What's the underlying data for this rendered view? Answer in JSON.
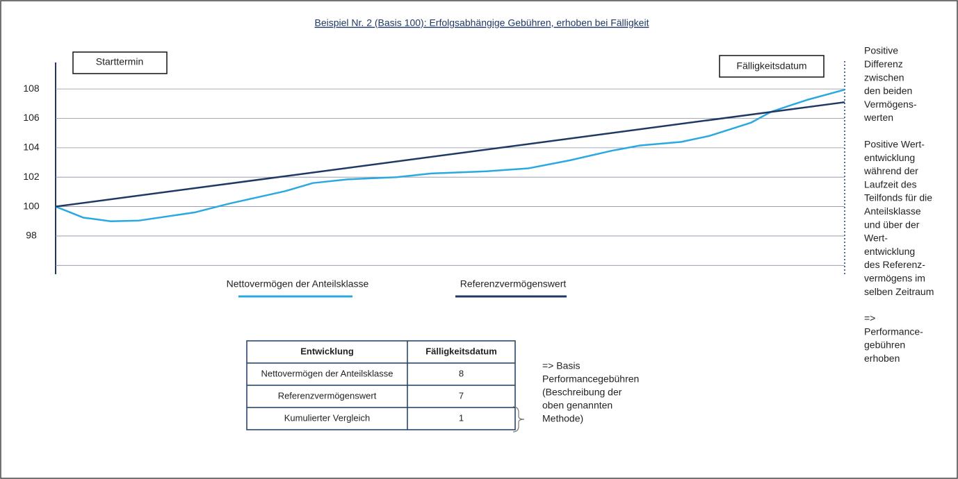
{
  "chart_data": {
    "type": "line",
    "title": "Beispiel Nr. 2 (Basis 100): Erfolgsabhängige Gebühren, erhoben bei Fälligkeit",
    "start_label": "Starttermin",
    "end_label": "Fälligkeitsdatum",
    "xlim": [
      0,
      100
    ],
    "ylim": [
      95.4,
      109.8
    ],
    "yticks": [
      98,
      100,
      102,
      104,
      106,
      108
    ],
    "gridlines": [
      96,
      98,
      100,
      102,
      104,
      106,
      108
    ],
    "grid": true,
    "series": [
      {
        "name": "Nettovermögen der Anteilsklasse",
        "color": "#2aa9e0",
        "x": [
          0,
          3.5,
          7.0,
          10.6,
          17.6,
          22.0,
          29.1,
          32.6,
          37.0,
          43.2,
          47.6,
          54.6,
          59.9,
          65.2,
          70.5,
          74.0,
          79.3,
          82.8,
          88.1,
          90.7,
          95.2,
          100
        ],
        "values": [
          100,
          99.25,
          99.0,
          99.05,
          99.6,
          100.2,
          101.05,
          101.6,
          101.85,
          102.0,
          102.25,
          102.4,
          102.6,
          103.15,
          103.8,
          104.15,
          104.4,
          104.8,
          105.7,
          106.45,
          107.25,
          107.95
        ]
      },
      {
        "name": "Referenzvermögenswert",
        "color": "#1f3864",
        "x": [
          0,
          100
        ],
        "values": [
          100,
          107.1
        ]
      }
    ],
    "side_notes": [
      [
        "Positive",
        "Differenz",
        "zwischen",
        "den beiden",
        "Vermögens-",
        "werten"
      ],
      [
        "Positive Wert-",
        "entwicklung",
        "während der",
        "Laufzeit des",
        "Teilfonds für die",
        "Anteilsklasse",
        "und über der",
        "Wert-",
        "entwicklung",
        "des Referenz-",
        "vermögens im",
        "selben Zeitraum"
      ],
      [
        "=>",
        "Performance-",
        "gebühren",
        "erhoben"
      ]
    ]
  },
  "table": {
    "header": [
      "Entwicklung",
      "Fälligkeitsdatum"
    ],
    "rows": [
      [
        "Nettovermögen der Anteilsklasse",
        "8"
      ],
      [
        "Referenzvermögenswert",
        "7"
      ],
      [
        "Kumulierter Vergleich",
        "1"
      ]
    ]
  },
  "note": [
    "=> Basis",
    "Performancegebühren",
    "(Beschreibung der",
    "oben genannten",
    "Methode)"
  ]
}
